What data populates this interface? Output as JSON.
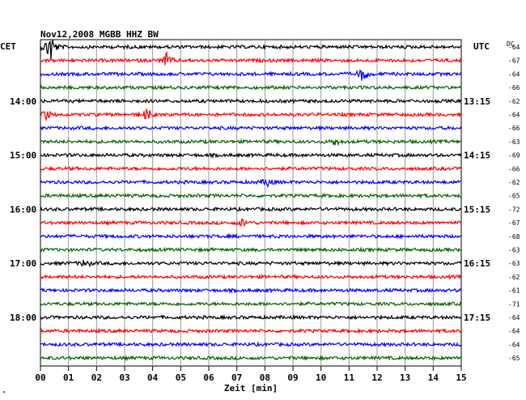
{
  "chart_data": {
    "type": "line",
    "title": "Nov12,2008   MGBB HHZ BW",
    "left_axis_label": "CET",
    "right_axis_label": "UTC",
    "dc_label": "DC",
    "xlabel": "Zeit [min]",
    "xlim": [
      0,
      15
    ],
    "x_ticks": [
      "00",
      "01",
      "02",
      "03",
      "04",
      "05",
      "06",
      "07",
      "08",
      "09",
      "10",
      "11",
      "12",
      "13",
      "14",
      "15"
    ],
    "left_hour_labels": [
      {
        "trace": 4,
        "text": "14:00"
      },
      {
        "trace": 8,
        "text": "15:00"
      },
      {
        "trace": 12,
        "text": "16:00"
      },
      {
        "trace": 16,
        "text": "17:00"
      },
      {
        "trace": 20,
        "text": "18:00"
      }
    ],
    "right_hour_labels": [
      {
        "trace": 4,
        "text": "13:15"
      },
      {
        "trace": 8,
        "text": "14:15"
      },
      {
        "trace": 12,
        "text": "15:15"
      },
      {
        "trace": 16,
        "text": "16:15"
      },
      {
        "trace": 20,
        "text": "17:15"
      }
    ],
    "dc_values": [
      "-64",
      "-67",
      "-64",
      "-66",
      "-62",
      "-64",
      "-66",
      "-63",
      "-69",
      "-66",
      "-62",
      "-65",
      "-72",
      "-67",
      "-68",
      "-63",
      "-63",
      "-62",
      "-61",
      "-71",
      "-64",
      "-64",
      "-64",
      "-65"
    ],
    "trace_colors": [
      "#000000",
      "#ff0000",
      "#0000ff",
      "#006400"
    ],
    "events": [
      {
        "trace": 0,
        "minute": 0.35,
        "amplitude": 3.0
      },
      {
        "trace": 1,
        "minute": 4.5,
        "amplitude": 1.2
      },
      {
        "trace": 2,
        "minute": 11.5,
        "amplitude": 1.3
      },
      {
        "trace": 5,
        "minute": 3.8,
        "amplitude": 1.0
      },
      {
        "trace": 5,
        "minute": 0.2,
        "amplitude": 0.8
      },
      {
        "trace": 7,
        "minute": 10.5,
        "amplitude": 0.6
      },
      {
        "trace": 10,
        "minute": 8.1,
        "amplitude": 0.8
      },
      {
        "trace": 13,
        "minute": 7.2,
        "amplitude": 0.6
      },
      {
        "trace": 16,
        "minute": 1.6,
        "amplitude": 0.7
      }
    ]
  },
  "corner_mark": "ᴺ"
}
